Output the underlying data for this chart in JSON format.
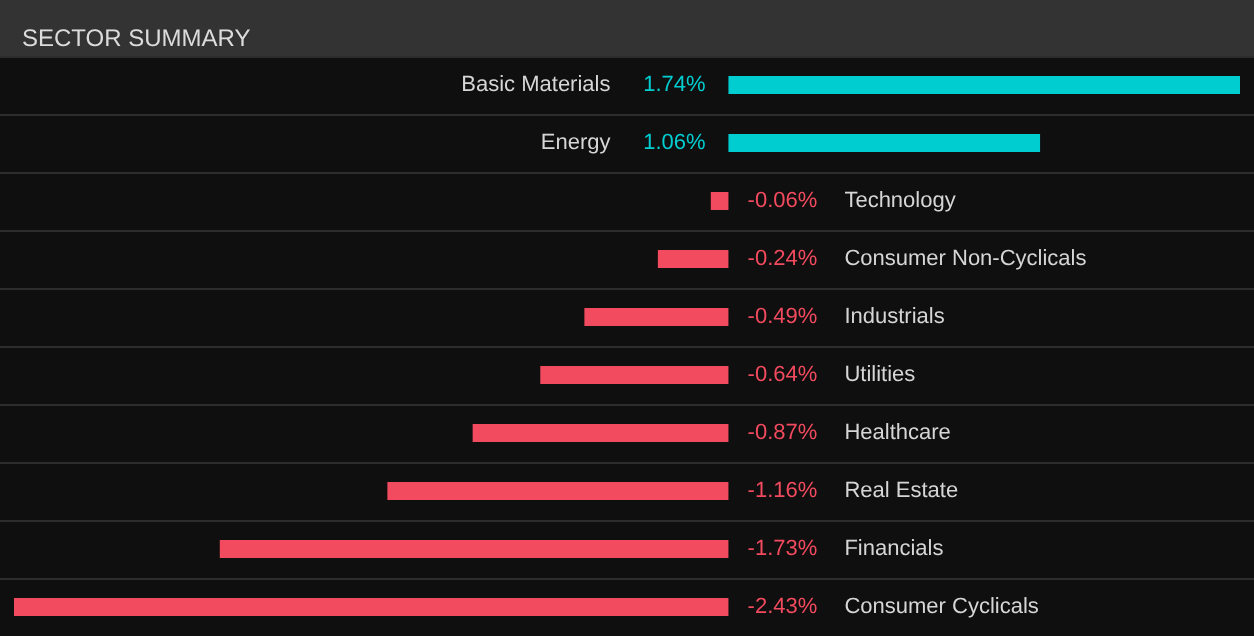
{
  "chart_data": {
    "type": "bar",
    "title": "SECTOR SUMMARY",
    "orientation": "horizontal",
    "grid": "y",
    "categories": [
      "Basic Materials",
      "Energy",
      "Technology",
      "Consumer Non-Cyclicals",
      "Industrials",
      "Utilities",
      "Healthcare",
      "Real Estate",
      "Financials",
      "Consumer Cyclicals"
    ],
    "values": [
      1.74,
      1.06,
      -0.06,
      -0.24,
      -0.49,
      -0.64,
      -0.87,
      -1.16,
      -1.73,
      -2.43
    ],
    "value_labels": [
      "1.74%",
      "1.06%",
      "-0.06%",
      "-0.24%",
      "-0.49%",
      "-0.64%",
      "-0.87%",
      "-1.16%",
      "-1.73%",
      "-2.43%"
    ],
    "colors": [
      "#00cdd0",
      "#00cdd0",
      "#f24a5e",
      "#f24a5e",
      "#f24a5e",
      "#f24a5e",
      "#f24a5e",
      "#f24a5e",
      "#f24a5e",
      "#f24a5e"
    ]
  }
}
